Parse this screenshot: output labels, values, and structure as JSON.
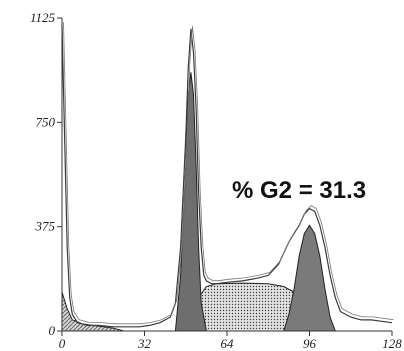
{
  "chart_data": {
    "type": "area",
    "xlim": [
      0,
      128
    ],
    "ylim": [
      0,
      1125
    ],
    "x_ticks": [
      0,
      32,
      64,
      96,
      128
    ],
    "y_ticks": [
      0,
      375,
      750,
      1125
    ],
    "x_tick_labels": [
      "0",
      "32",
      "64",
      "96",
      "128"
    ],
    "y_tick_labels": [
      "0",
      "375",
      "750",
      "1125"
    ],
    "annotation": "% G2 = 31.3",
    "series": [
      {
        "role": "measured histogram",
        "x": [
          0,
          1,
          2,
          3,
          4,
          6,
          8,
          10,
          14,
          20,
          26,
          30,
          34,
          38,
          42,
          44,
          46,
          48,
          49,
          50,
          51,
          52,
          53,
          54,
          55,
          56,
          58,
          60,
          64,
          70,
          76,
          80,
          84,
          86,
          88,
          90,
          92,
          94,
          96,
          98,
          100,
          102,
          104,
          106,
          108,
          112,
          116,
          120,
          124,
          128
        ],
        "y": [
          1100,
          700,
          300,
          120,
          60,
          30,
          25,
          20,
          20,
          15,
          15,
          15,
          20,
          30,
          50,
          100,
          300,
          700,
          950,
          1085,
          1000,
          800,
          500,
          300,
          200,
          180,
          170,
          170,
          175,
          180,
          190,
          200,
          240,
          280,
          320,
          350,
          380,
          420,
          440,
          430,
          380,
          300,
          200,
          120,
          70,
          50,
          40,
          40,
          35,
          30
        ]
      },
      {
        "role": "G1 fit",
        "x": [
          44,
          46,
          48,
          49,
          50,
          51,
          52,
          53,
          54,
          56
        ],
        "y": [
          0,
          200,
          600,
          850,
          930,
          850,
          600,
          300,
          100,
          0
        ]
      },
      {
        "role": "S fit",
        "x": [
          46,
          48,
          50,
          53,
          56,
          60,
          70,
          80,
          86,
          90,
          94,
          96,
          98
        ],
        "y": [
          0,
          30,
          60,
          120,
          160,
          170,
          172,
          170,
          160,
          140,
          90,
          40,
          0
        ]
      },
      {
        "role": "G2 fit",
        "x": [
          86,
          88,
          90,
          92,
          94,
          96,
          98,
          100,
          102,
          104,
          106
        ],
        "y": [
          0,
          60,
          150,
          270,
          350,
          380,
          350,
          270,
          150,
          50,
          0
        ]
      },
      {
        "role": "debris",
        "x": [
          0,
          2,
          4,
          8,
          12,
          16,
          20,
          24
        ],
        "y": [
          140,
          80,
          40,
          25,
          20,
          15,
          10,
          0
        ]
      }
    ]
  }
}
